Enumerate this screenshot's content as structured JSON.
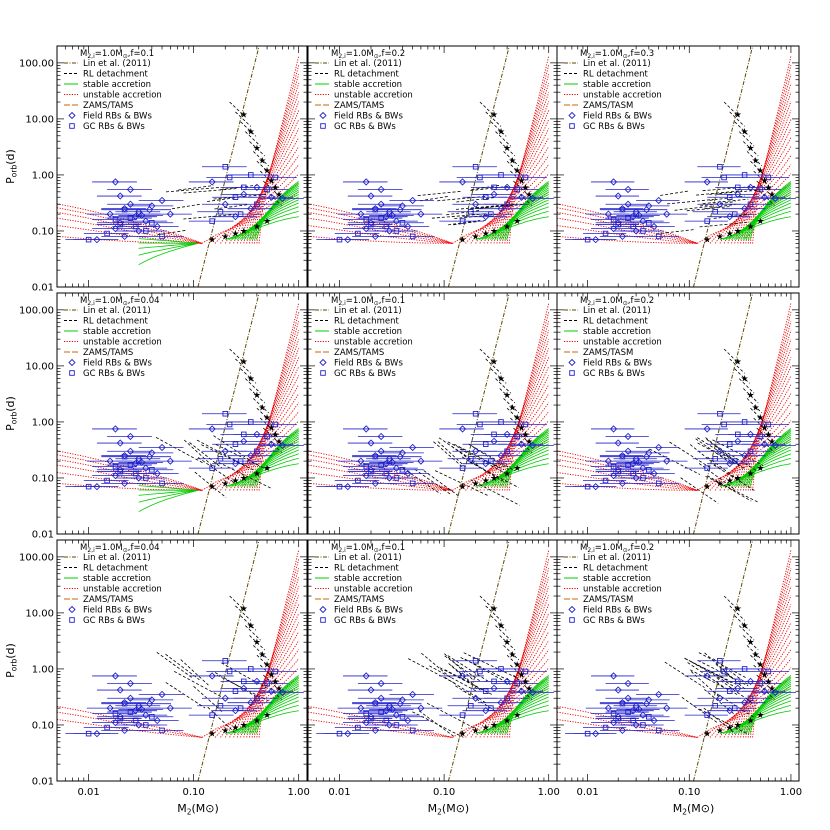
{
  "colors": {
    "lin": "#5a4a00",
    "rl": "#000000",
    "stable": "#00cc00",
    "unstable": "#ee0000",
    "zams": "#cc6600",
    "field": "#2222cc",
    "gc": "#2222cc",
    "star": "#000000"
  },
  "axes": {
    "xlabel": "M",
    "xlabel_sub": "2",
    "xlabel_unit": "(M",
    "xlabel_sun": "⊙",
    "xlabel_close": ")",
    "ylabel": "P",
    "ylabel_sub": "orb",
    "ylabel_unit": "(d)",
    "xticks": [
      "0.01",
      "0.10",
      "1.00"
    ],
    "yticks": [
      "100.00",
      "10.00",
      "1.00",
      "0.10",
      "0.01"
    ]
  },
  "chart_data": [
    {
      "type": "line",
      "row": 0,
      "col": 0,
      "title_parts": [
        "M",
        "2,i",
        "=1.0M",
        "⊙",
        ",f=0.1"
      ],
      "xlim": [
        0.005,
        1.2
      ],
      "ylim": [
        0.01,
        200
      ],
      "xscale": "log",
      "yscale": "log",
      "legend": [
        "Lin et al. (2011)",
        "RL detachment",
        "stable accretion",
        "unstable accretion",
        "ZAMS/TAMS",
        "Field RBs & BWs",
        "GC RBs & BWs"
      ]
    },
    {
      "type": "line",
      "row": 0,
      "col": 1,
      "title_parts": [
        "M",
        "2,i",
        "=1.0M",
        "⊙",
        ",f=0.2"
      ],
      "xlim": [
        0.005,
        1.2
      ],
      "ylim": [
        0.01,
        200
      ],
      "xscale": "log",
      "yscale": "log",
      "legend": [
        "Lin et al. (2011)",
        "RL detachment",
        "stable accretion",
        "unstable accretion",
        "ZAMS/TAMS",
        "Field RBs & BWs",
        "GC RBs & BWs"
      ]
    },
    {
      "type": "line",
      "row": 0,
      "col": 2,
      "title_parts": [
        "M",
        "2,i",
        "=1.0M",
        "⊙",
        ",f=0.3"
      ],
      "xlim": [
        0.005,
        1.2
      ],
      "ylim": [
        0.01,
        200
      ],
      "xscale": "log",
      "yscale": "log",
      "legend": [
        "Lin et al. (2011)",
        "RL detachment",
        "stable accretion",
        "unstable accretion",
        "ZAMS/TASM",
        "Field RBs & BWs",
        "GC RBs & BWs"
      ]
    },
    {
      "type": "line",
      "row": 1,
      "col": 0,
      "title_parts": [
        "M",
        "2,i",
        "=1.0M",
        "⊙",
        ",f=0.04"
      ],
      "xlim": [
        0.005,
        1.2
      ],
      "ylim": [
        0.01,
        200
      ],
      "xscale": "log",
      "yscale": "log",
      "legend": [
        "Lin et al. (2011)",
        "RL detachment",
        "stable accretion",
        "unstable accretion",
        "ZAMS/TAMS",
        "Field RBs & BWs",
        "GC RBs & BWs"
      ]
    },
    {
      "type": "line",
      "row": 1,
      "col": 1,
      "title_parts": [
        "M",
        "2,i",
        "=1.0M",
        "⊙",
        ",f=0.1"
      ],
      "xlim": [
        0.005,
        1.2
      ],
      "ylim": [
        0.01,
        200
      ],
      "xscale": "log",
      "yscale": "log",
      "legend": [
        "Lin et al. (2011)",
        "RL detachment",
        "stable accretion",
        "unstable accretion",
        "ZAMS/TAMS",
        "Field RBs & BWs",
        "GC RBs & BWs"
      ]
    },
    {
      "type": "line",
      "row": 1,
      "col": 2,
      "title_parts": [
        "M",
        "2,i",
        "=1.0M",
        "⊙",
        ",f=0.2"
      ],
      "xlim": [
        0.005,
        1.2
      ],
      "ylim": [
        0.01,
        200
      ],
      "xscale": "log",
      "yscale": "log",
      "legend": [
        "Lin et al. (2011)",
        "RL detachment",
        "stable accretion",
        "unstable accretion",
        "ZAMS/TASM",
        "Field RBs & BWs",
        "GC RBs & BWs"
      ]
    },
    {
      "type": "line",
      "row": 2,
      "col": 0,
      "title_parts": [
        "M",
        "2,i",
        "=1.0M",
        "⊙",
        ",f=0.04"
      ],
      "xlim": [
        0.005,
        1.2
      ],
      "ylim": [
        0.01,
        200
      ],
      "xscale": "log",
      "yscale": "log",
      "legend": [
        "Lin et al. (2011)",
        "RL detachment",
        "stable accretion",
        "unstable accretion",
        "ZAMS/TAMS",
        "Field RBs & BWs",
        "GC RBs & BWs"
      ]
    },
    {
      "type": "line",
      "row": 2,
      "col": 1,
      "title_parts": [
        "M",
        "2,i",
        "=1.0M",
        "⊙",
        ",f=0.1"
      ],
      "xlim": [
        0.005,
        1.2
      ],
      "ylim": [
        0.01,
        200
      ],
      "xscale": "log",
      "yscale": "log",
      "legend": [
        "Lin et al. (2011)",
        "RL detachment",
        "stable accretion",
        "unstable accretion",
        "ZAMS/TAMS",
        "Field RBs & BWs",
        "GC RBs & BWs"
      ]
    },
    {
      "type": "line",
      "row": 2,
      "col": 2,
      "title_parts": [
        "M",
        "2,i",
        "=1.0M",
        "⊙",
        ",f=0.2"
      ],
      "xlim": [
        0.005,
        1.2
      ],
      "ylim": [
        0.01,
        200
      ],
      "xscale": "log",
      "yscale": "log",
      "legend": [
        "Lin et al. (2011)",
        "RL detachment",
        "stable accretion",
        "unstable accretion",
        "ZAMS/TASM",
        "Field RBs & BWs",
        "GC RBs & BWs"
      ]
    }
  ],
  "observations": {
    "field": [
      [
        0.018,
        0.75
      ],
      [
        0.02,
        0.42
      ],
      [
        0.025,
        0.3
      ],
      [
        0.022,
        0.25
      ],
      [
        0.03,
        0.22
      ],
      [
        0.028,
        0.18
      ],
      [
        0.035,
        0.15
      ],
      [
        0.02,
        0.14
      ],
      [
        0.016,
        0.2
      ],
      [
        0.04,
        0.28
      ],
      [
        0.045,
        0.12
      ],
      [
        0.03,
        0.1
      ],
      [
        0.025,
        0.55
      ],
      [
        0.05,
        0.35
      ],
      [
        0.06,
        0.2
      ],
      [
        0.012,
        0.07
      ],
      [
        0.022,
        0.08
      ],
      [
        0.018,
        0.11
      ],
      [
        0.032,
        0.19
      ],
      [
        0.038,
        0.24
      ],
      [
        0.15,
        0.75
      ],
      [
        0.2,
        0.3
      ],
      [
        0.3,
        0.45
      ],
      [
        0.25,
        0.18
      ],
      [
        0.4,
        0.6
      ],
      [
        0.55,
        0.4
      ],
      [
        0.7,
        0.38
      ],
      [
        0.35,
        0.25
      ]
    ],
    "gc": [
      [
        0.01,
        0.07
      ],
      [
        0.015,
        0.09
      ],
      [
        0.02,
        0.13
      ],
      [
        0.025,
        0.17
      ],
      [
        0.03,
        0.2
      ],
      [
        0.04,
        0.14
      ],
      [
        0.022,
        0.24
      ],
      [
        0.028,
        0.12
      ],
      [
        0.035,
        0.1
      ],
      [
        0.05,
        0.08
      ],
      [
        0.018,
        0.16
      ],
      [
        0.2,
        1.4
      ],
      [
        0.22,
        0.9
      ],
      [
        0.3,
        0.6
      ],
      [
        0.35,
        1.0
      ],
      [
        0.4,
        0.3
      ],
      [
        0.25,
        0.4
      ],
      [
        0.18,
        0.22
      ],
      [
        0.5,
        0.55
      ],
      [
        0.15,
        0.15
      ],
      [
        0.28,
        0.2
      ],
      [
        0.6,
        0.9
      ]
    ],
    "stars": [
      [
        0.3,
        12
      ],
      [
        0.35,
        6
      ],
      [
        0.4,
        3
      ],
      [
        0.45,
        1.8
      ],
      [
        0.5,
        1.2
      ],
      [
        0.55,
        0.8
      ],
      [
        0.6,
        0.6
      ],
      [
        0.65,
        0.45
      ],
      [
        0.2,
        0.08
      ],
      [
        0.25,
        0.09
      ],
      [
        0.3,
        0.1
      ],
      [
        0.4,
        0.12
      ],
      [
        0.5,
        0.15
      ],
      [
        0.15,
        0.07
      ]
    ]
  }
}
